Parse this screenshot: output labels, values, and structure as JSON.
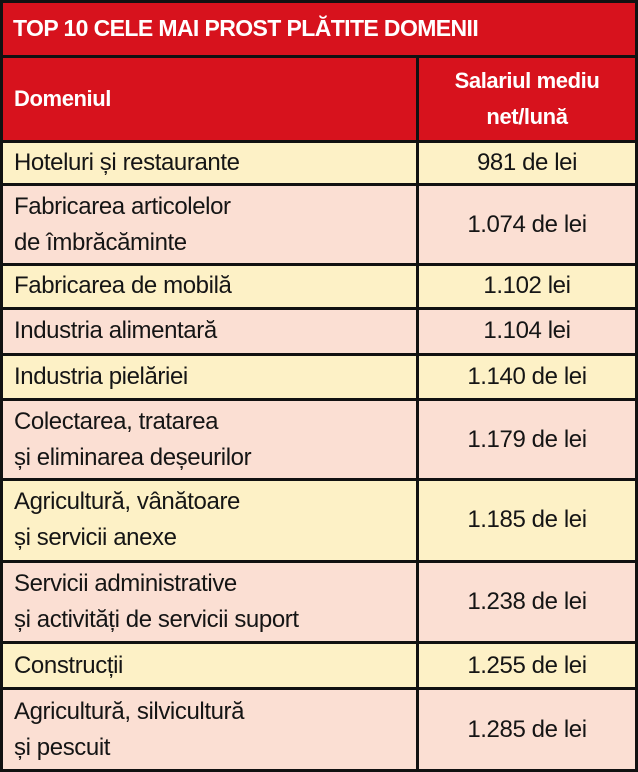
{
  "table": {
    "title": "TOP 10 CELE MAI PROST PLĂTITE DOMENII",
    "header": [
      [
        "Domeniul"
      ],
      [
        "Salariul mediu",
        "net/lună"
      ]
    ],
    "rows": [
      [
        [
          "Hoteluri și restaurante"
        ],
        [
          "981 de lei"
        ]
      ],
      [
        [
          "Fabricarea articolelor",
          "de îmbrăcăminte"
        ],
        [
          "1.074 de lei"
        ]
      ],
      [
        [
          "Fabricarea de mobilă"
        ],
        [
          "1.102 lei"
        ]
      ],
      [
        [
          "Industria alimentară"
        ],
        [
          "1.104 lei"
        ]
      ],
      [
        [
          "Industria pielăriei"
        ],
        [
          "1.140 de lei"
        ]
      ],
      [
        [
          "Colectarea, tratarea",
          "și eliminarea deșeurilor"
        ],
        [
          "1.179 de lei"
        ]
      ],
      [
        [
          "Agricultură, vânătoare",
          "și servicii anexe"
        ],
        [
          "1.185 de lei"
        ]
      ],
      [
        [
          "Servicii administrative",
          "și activități de servicii suport"
        ],
        [
          "1.238 de lei"
        ]
      ],
      [
        [
          "Construcții"
        ],
        [
          "1.255 de lei"
        ]
      ],
      [
        [
          "Agricultură, silvicultură",
          "și pescuit"
        ],
        [
          "1.285 de lei"
        ]
      ]
    ]
  }
}
